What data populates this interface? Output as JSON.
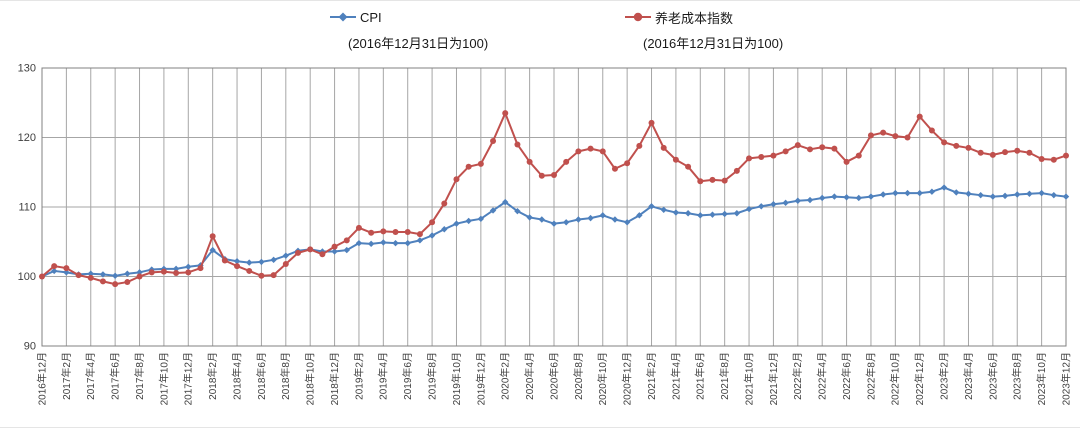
{
  "legend": [
    {
      "label": "CPI",
      "subtitle": "(2016年12月31日为100)",
      "color": "#4F81BD",
      "marker": "diamond"
    },
    {
      "label": "养老成本指数",
      "subtitle": "(2016年12月31日为100)",
      "color": "#C0504D",
      "marker": "circle"
    }
  ],
  "chart_data": {
    "type": "line",
    "title": "",
    "xlabel": "",
    "ylabel": "",
    "ylim": [
      90,
      130
    ],
    "yticks": [
      90,
      100,
      110,
      120,
      130
    ],
    "grid": true,
    "legend_position": "top",
    "label_every": 2,
    "categories": [
      "2016年12月",
      "2017年1月",
      "2017年2月",
      "2017年3月",
      "2017年4月",
      "2017年5月",
      "2017年6月",
      "2017年7月",
      "2017年8月",
      "2017年9月",
      "2017年10月",
      "2017年11月",
      "2017年12月",
      "2018年1月",
      "2018年2月",
      "2018年3月",
      "2018年4月",
      "2018年5月",
      "2018年6月",
      "2018年7月",
      "2018年8月",
      "2018年9月",
      "2018年10月",
      "2018年11月",
      "2018年12月",
      "2019年1月",
      "2019年2月",
      "2019年3月",
      "2019年4月",
      "2019年5月",
      "2019年6月",
      "2019年7月",
      "2019年8月",
      "2019年9月",
      "2019年10月",
      "2019年11月",
      "2019年12月",
      "2020年1月",
      "2020年2月",
      "2020年3月",
      "2020年4月",
      "2020年5月",
      "2020年6月",
      "2020年7月",
      "2020年8月",
      "2020年9月",
      "2020年10月",
      "2020年11月",
      "2020年12月",
      "2021年1月",
      "2021年2月",
      "2021年3月",
      "2021年4月",
      "2021年5月",
      "2021年6月",
      "2021年7月",
      "2021年8月",
      "2021年9月",
      "2021年10月",
      "2021年11月",
      "2021年12月",
      "2022年1月",
      "2022年2月",
      "2022年3月",
      "2022年4月",
      "2022年5月",
      "2022年6月",
      "2022年7月",
      "2022年8月",
      "2022年9月",
      "2022年10月",
      "2022年11月",
      "2022年12月",
      "2023年1月",
      "2023年2月",
      "2023年3月",
      "2023年4月",
      "2023年5月",
      "2023年6月",
      "2023年7月",
      "2023年8月",
      "2023年9月",
      "2023年10月",
      "2023年11月",
      "2023年12月"
    ],
    "series": [
      {
        "name": "CPI",
        "color": "#4F81BD",
        "marker": "diamond",
        "values": [
          100.0,
          100.8,
          100.6,
          100.3,
          100.4,
          100.3,
          100.1,
          100.4,
          100.6,
          101.0,
          101.1,
          101.1,
          101.4,
          101.6,
          103.8,
          102.5,
          102.2,
          102.0,
          102.1,
          102.4,
          103.0,
          103.7,
          103.9,
          103.6,
          103.6,
          103.8,
          104.8,
          104.7,
          104.9,
          104.8,
          104.8,
          105.2,
          105.9,
          106.8,
          107.6,
          108.0,
          108.3,
          109.5,
          110.7,
          109.4,
          108.5,
          108.2,
          107.6,
          107.8,
          108.2,
          108.4,
          108.8,
          108.2,
          107.8,
          108.8,
          110.1,
          109.6,
          109.2,
          109.1,
          108.8,
          108.9,
          109.0,
          109.1,
          109.7,
          110.1,
          110.4,
          110.6,
          110.9,
          111.0,
          111.3,
          111.5,
          111.4,
          111.3,
          111.5,
          111.8,
          112.0,
          112.0,
          112.0,
          112.2,
          112.8,
          112.1,
          111.9,
          111.7,
          111.5,
          111.6,
          111.8,
          111.9,
          112.0,
          111.7,
          111.5
        ]
      },
      {
        "name": "养老成本指数",
        "color": "#C0504D",
        "marker": "circle",
        "values": [
          100.0,
          101.5,
          101.2,
          100.2,
          99.8,
          99.3,
          98.9,
          99.2,
          100.0,
          100.6,
          100.7,
          100.5,
          100.6,
          101.2,
          105.8,
          102.3,
          101.5,
          100.8,
          100.1,
          100.2,
          101.8,
          103.4,
          103.9,
          103.2,
          104.3,
          105.2,
          107.0,
          106.3,
          106.5,
          106.4,
          106.4,
          106.1,
          107.8,
          110.5,
          114.0,
          115.8,
          116.2,
          119.5,
          123.5,
          119.0,
          116.5,
          114.5,
          114.6,
          116.5,
          118.0,
          118.4,
          118.0,
          115.5,
          116.3,
          118.8,
          122.1,
          118.5,
          116.8,
          115.8,
          113.7,
          113.9,
          113.8,
          115.2,
          117.0,
          117.2,
          117.4,
          118.0,
          118.9,
          118.3,
          118.6,
          118.4,
          116.5,
          117.4,
          120.3,
          120.7,
          120.2,
          120.0,
          123.0,
          121.0,
          119.3,
          118.8,
          118.5,
          117.8,
          117.5,
          117.9,
          118.1,
          117.8,
          116.9,
          116.8,
          117.4
        ]
      }
    ]
  },
  "style": {
    "gridline_color": "#a6a6a6",
    "axis_border_color": "#808080",
    "tick_label_color": "#404040"
  }
}
